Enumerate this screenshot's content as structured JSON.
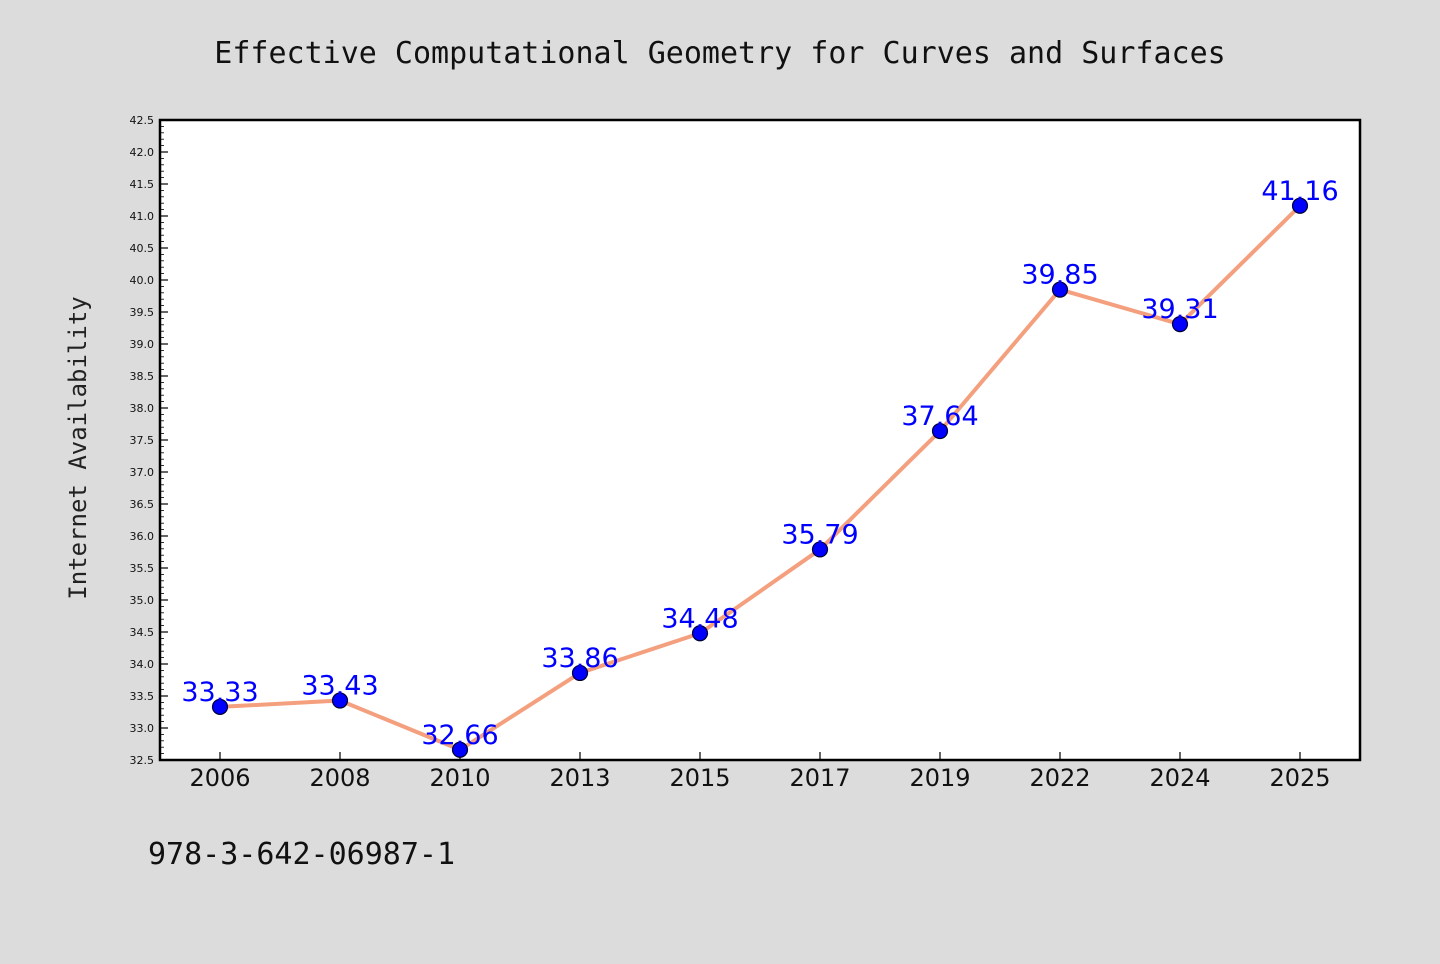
{
  "chart_data": {
    "type": "line",
    "title": "Effective Computational Geometry for Curves and Surfaces",
    "xlabel": "",
    "ylabel": "Internet Availability",
    "categories": [
      "2006",
      "2008",
      "2010",
      "2013",
      "2015",
      "2017",
      "2019",
      "2022",
      "2024",
      "2025"
    ],
    "values": [
      33.33,
      33.43,
      32.66,
      33.86,
      34.48,
      35.79,
      37.64,
      39.85,
      39.31,
      41.16
    ],
    "data_labels": [
      "33.33",
      "33.43",
      "32.66",
      "33.86",
      "34.48",
      "35.79",
      "37.64",
      "39.85",
      "39.31",
      "41.16"
    ],
    "ylim": [
      32.5,
      42.5
    ],
    "yticks": [
      "32.5",
      "33.0",
      "33.5",
      "34.0",
      "34.5",
      "35.0",
      "35.5",
      "36.0",
      "36.5",
      "37.0",
      "37.5",
      "38.0",
      "38.5",
      "39.0",
      "39.5",
      "40.0",
      "40.5",
      "41.0",
      "41.5",
      "42.0",
      "42.5"
    ],
    "grid": false,
    "legend": "none",
    "colors": {
      "line": "#f4a07e",
      "marker": "#0000ff",
      "marker_edge": "#000033",
      "labels": "#0000ff",
      "background": "#dcdcdc",
      "plot_background": "#ffffff"
    }
  },
  "footer": {
    "isbn": "978-3-642-06987-1"
  }
}
